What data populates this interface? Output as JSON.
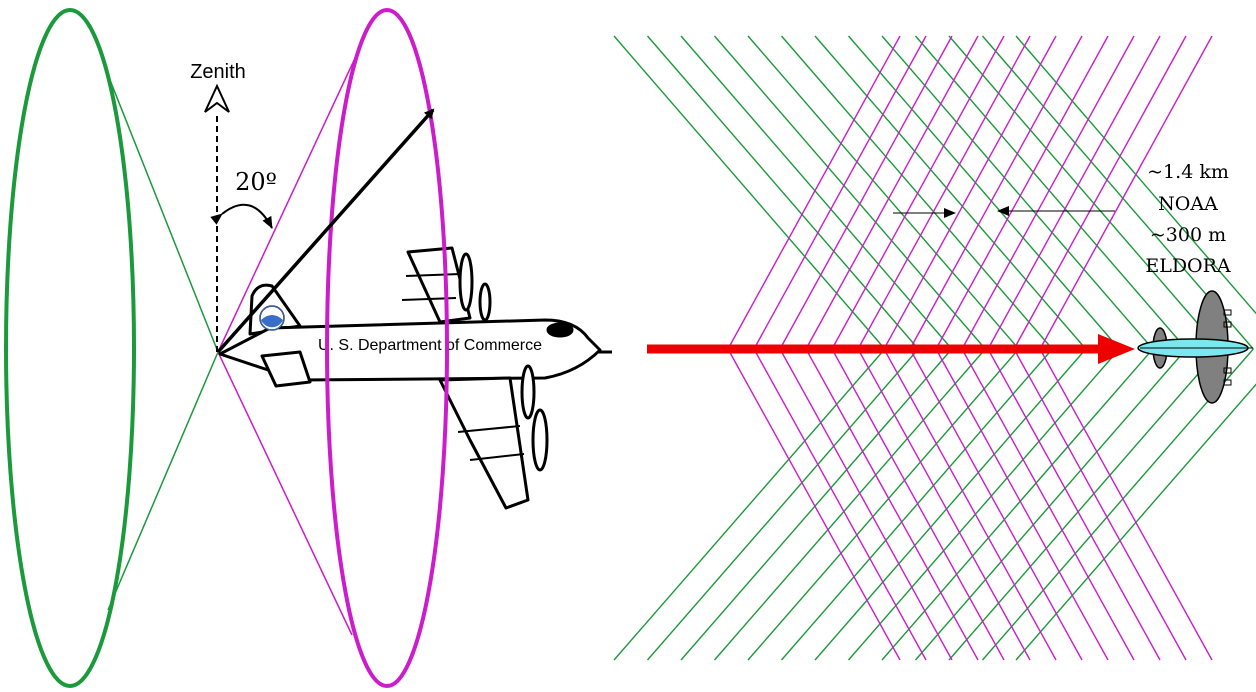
{
  "labels": {
    "zenith": "Zenith",
    "tilt_angle": "20º",
    "aircraft_text": "U. S. Department of Commerce",
    "noaa_spacing": "~1.4 km",
    "noaa_name": "NOAA",
    "eldora_spacing": "~300 m",
    "eldora_name": "ELDORA"
  },
  "colors": {
    "fore_beam": "#1a9a3a",
    "aft_beam": "#cc1ccc",
    "flight_track": "#ee0000",
    "fuselage_topview": "#7ae8ee",
    "wing_topview": "#808080",
    "logo": "#3a6ec8",
    "ink": "#000000"
  },
  "icons": [
    "zenith-arrow-icon",
    "aircraft-icon",
    "noaa-logo-icon",
    "aircraft-topview-icon",
    "flight-direction-arrow-icon"
  ]
}
